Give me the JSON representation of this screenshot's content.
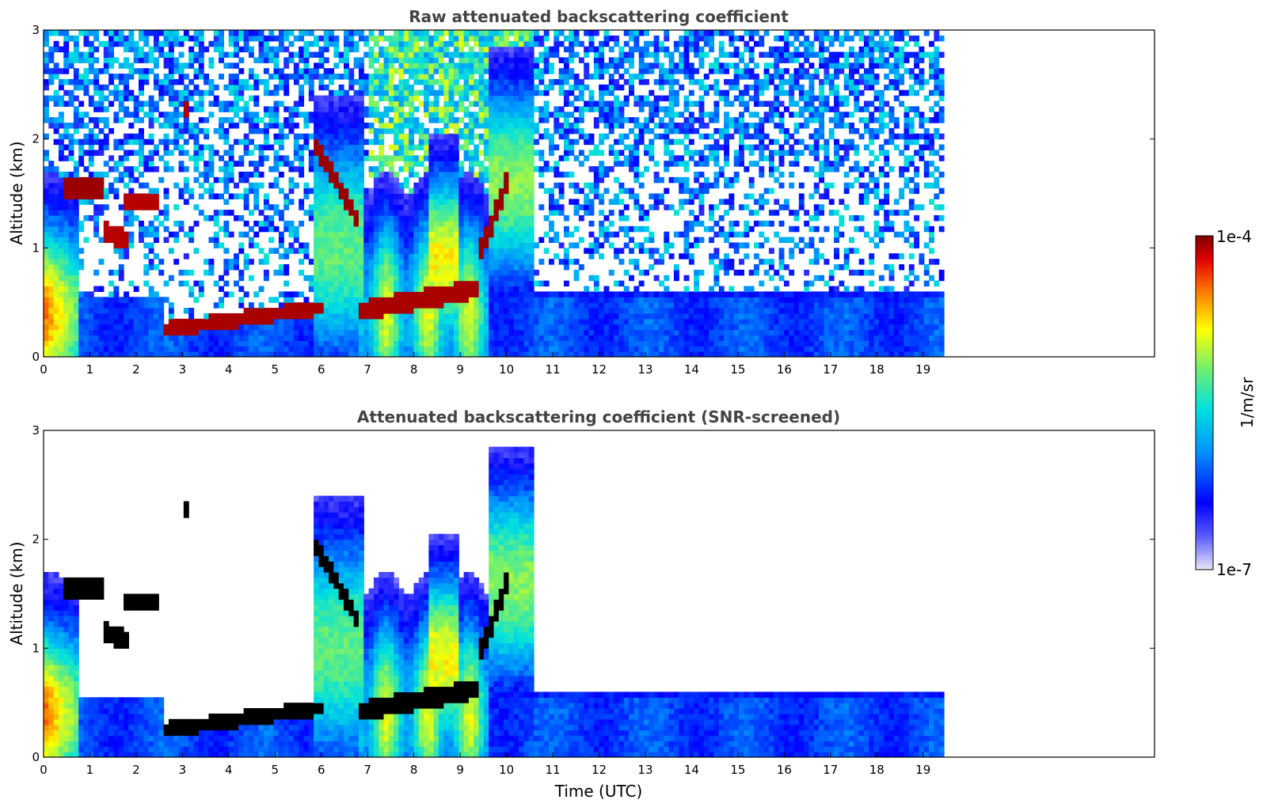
{
  "chart_data": [
    {
      "type": "heatmap",
      "title": "Raw attenuated backscattering coefficient",
      "xlabel": "",
      "ylabel": "Altitude (km)",
      "xlim": [
        0,
        24
      ],
      "ylim": [
        0,
        3
      ],
      "x_ticks": [
        0,
        1,
        2,
        3,
        4,
        5,
        6,
        7,
        8,
        9,
        10,
        11,
        12,
        13,
        14,
        15,
        16,
        17,
        18,
        19
      ],
      "x_tick_labels": [
        "0",
        "1",
        "2",
        "3",
        "4",
        "5",
        "6",
        "7",
        "8",
        "9",
        "10",
        "11",
        "12",
        "13",
        "14",
        "15",
        "16",
        "17",
        "18",
        "19"
      ],
      "y_ticks": [
        0,
        1,
        2,
        3
      ],
      "y_tick_labels": [
        "0",
        "1",
        "2",
        "3"
      ],
      "data_extent_x": [
        0,
        19.45
      ],
      "features": [
        {
          "kind": "cloud",
          "x": [
            0.4,
            1.3
          ],
          "alt": [
            1.45,
            1.65
          ],
          "level": "high"
        },
        {
          "kind": "cloud",
          "x": [
            1.7,
            2.5
          ],
          "alt": [
            1.35,
            1.5
          ],
          "level": "high"
        },
        {
          "kind": "cloud",
          "x": [
            1.3,
            1.8
          ],
          "alt": [
            1.0,
            1.25
          ],
          "level": "high"
        },
        {
          "kind": "cloud",
          "x": [
            3.0,
            3.15
          ],
          "alt": [
            2.2,
            2.35
          ],
          "level": "high"
        },
        {
          "kind": "cloud",
          "x": [
            2.6,
            6.0
          ],
          "alt": [
            0.15,
            0.5
          ],
          "level": "high"
        },
        {
          "kind": "cloud",
          "x": [
            5.8,
            6.8
          ],
          "alt": [
            1.3,
            2.0
          ],
          "level": "high"
        },
        {
          "kind": "cloud",
          "x": [
            6.8,
            9.4
          ],
          "alt": [
            0.3,
            0.65
          ],
          "level": "high"
        },
        {
          "kind": "cloud",
          "x": [
            9.4,
            10.0
          ],
          "alt": [
            1.0,
            1.6
          ],
          "level": "high"
        },
        {
          "kind": "aerosol",
          "x": [
            0,
            0.7
          ],
          "alt": [
            0,
            1.5
          ],
          "level": "medium"
        },
        {
          "kind": "aerosol",
          "x": [
            6.8,
            9.6
          ],
          "alt": [
            0,
            2.0
          ],
          "level": "medium"
        },
        {
          "kind": "aerosol",
          "x": [
            9.6,
            10.6
          ],
          "alt": [
            0.6,
            2.5
          ],
          "level": "medium"
        },
        {
          "kind": "boundary-layer",
          "x": [
            9.6,
            19.45
          ],
          "alt": [
            0,
            0.6
          ],
          "level": "low"
        }
      ],
      "colorbar": {
        "min_label": "1e-7",
        "max_label": "1e-4",
        "label": "1/m/sr",
        "colormap": "jet"
      }
    },
    {
      "type": "heatmap",
      "title": "Attenuated backscattering coefficient (SNR-screened)",
      "xlabel": "Time (UTC)",
      "ylabel": "Altitude (km)",
      "xlim": [
        0,
        24
      ],
      "ylim": [
        0,
        3
      ],
      "x_ticks": [
        0,
        1,
        2,
        3,
        4,
        5,
        6,
        7,
        8,
        9,
        10,
        11,
        12,
        13,
        14,
        15,
        16,
        17,
        18,
        19
      ],
      "x_tick_labels": [
        "0",
        "1",
        "2",
        "3",
        "4",
        "5",
        "6",
        "7",
        "8",
        "9",
        "10",
        "11",
        "12",
        "13",
        "14",
        "15",
        "16",
        "17",
        "18",
        "19"
      ],
      "y_ticks": [
        0,
        1,
        2,
        3
      ],
      "y_tick_labels": [
        "0",
        "1",
        "2",
        "3"
      ],
      "data_extent_x": [
        0,
        19.45
      ],
      "screened_value_color": "#000000",
      "colorbar": {
        "min_label": "1e-7",
        "max_label": "1e-4",
        "label": "1/m/sr",
        "colormap": "jet"
      }
    }
  ],
  "colors": {
    "title": "#444444",
    "axis": "#000000",
    "background": "#ffffff",
    "saturated": "#000000"
  }
}
